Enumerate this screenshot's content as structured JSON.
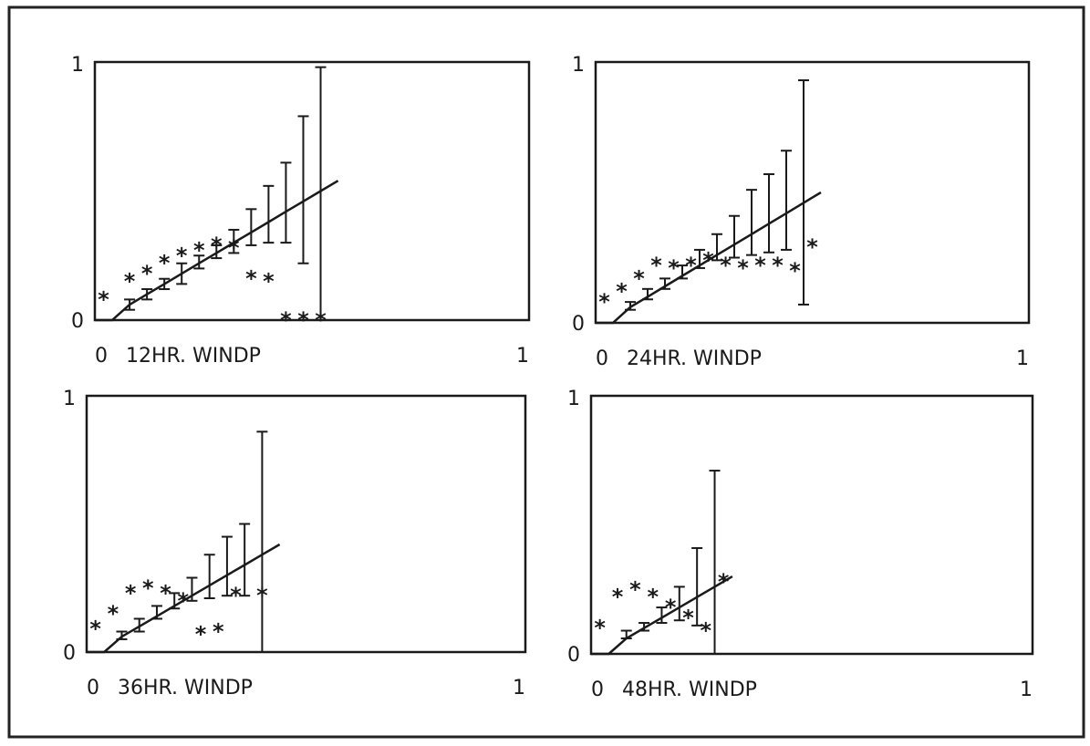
{
  "chart_data": [
    {
      "type": "line",
      "xlabel": "12HR. WINDP",
      "xlim": [
        0,
        1
      ],
      "ylim": [
        0,
        1
      ],
      "x_ticks": [
        "0",
        "1"
      ],
      "y_ticks": [
        "0",
        "1"
      ],
      "line": {
        "x": [
          0,
          0.04,
          0.08,
          0.12,
          0.16,
          0.2,
          0.24,
          0.28,
          0.32,
          0.36,
          0.4,
          0.44,
          0.48,
          0.52,
          0.56
        ],
        "y": [
          0,
          0,
          0.06,
          0.1,
          0.14,
          0.18,
          0.22,
          0.26,
          0.3,
          0.34,
          0.38,
          0.42,
          0.46,
          0.5,
          0.54
        ]
      },
      "error_bars": [
        {
          "x": 0.08,
          "low": 0.04,
          "high": 0.08
        },
        {
          "x": 0.12,
          "low": 0.08,
          "high": 0.12
        },
        {
          "x": 0.16,
          "low": 0.12,
          "high": 0.16
        },
        {
          "x": 0.2,
          "low": 0.14,
          "high": 0.22
        },
        {
          "x": 0.24,
          "low": 0.2,
          "high": 0.25
        },
        {
          "x": 0.28,
          "low": 0.24,
          "high": 0.29
        },
        {
          "x": 0.32,
          "low": 0.26,
          "high": 0.35
        },
        {
          "x": 0.36,
          "low": 0.29,
          "high": 0.43
        },
        {
          "x": 0.4,
          "low": 0.3,
          "high": 0.52
        },
        {
          "x": 0.44,
          "low": 0.3,
          "high": 0.61
        },
        {
          "x": 0.48,
          "low": 0.22,
          "high": 0.79
        },
        {
          "x": 0.52,
          "low": 0.0,
          "high": 0.98
        }
      ],
      "points": {
        "x": [
          0.02,
          0.08,
          0.12,
          0.16,
          0.2,
          0.24,
          0.28,
          0.32,
          0.36,
          0.4,
          0.44,
          0.48,
          0.52
        ],
        "y": [
          0.08,
          0.15,
          0.18,
          0.22,
          0.25,
          0.27,
          0.29,
          0.28,
          0.16,
          0.15,
          0.0,
          0.0,
          0.0
        ]
      }
    },
    {
      "type": "line",
      "xlabel": "24HR. WINDP",
      "xlim": [
        0,
        1
      ],
      "ylim": [
        0,
        1
      ],
      "x_ticks": [
        "0",
        "1"
      ],
      "y_ticks": [
        "0",
        "1"
      ],
      "line": {
        "x": [
          0,
          0.04,
          0.08,
          0.12,
          0.16,
          0.2,
          0.24,
          0.28,
          0.32,
          0.36,
          0.4,
          0.44,
          0.48,
          0.52
        ],
        "y": [
          0,
          0,
          0.06,
          0.1,
          0.14,
          0.18,
          0.22,
          0.26,
          0.3,
          0.34,
          0.38,
          0.42,
          0.46,
          0.5
        ]
      },
      "error_bars": [
        {
          "x": 0.08,
          "low": 0.05,
          "high": 0.08
        },
        {
          "x": 0.12,
          "low": 0.09,
          "high": 0.13
        },
        {
          "x": 0.16,
          "low": 0.13,
          "high": 0.17
        },
        {
          "x": 0.2,
          "low": 0.17,
          "high": 0.22
        },
        {
          "x": 0.24,
          "low": 0.21,
          "high": 0.28
        },
        {
          "x": 0.28,
          "low": 0.24,
          "high": 0.34
        },
        {
          "x": 0.32,
          "low": 0.25,
          "high": 0.41
        },
        {
          "x": 0.36,
          "low": 0.26,
          "high": 0.51
        },
        {
          "x": 0.4,
          "low": 0.27,
          "high": 0.57
        },
        {
          "x": 0.44,
          "low": 0.28,
          "high": 0.66
        },
        {
          "x": 0.48,
          "low": 0.07,
          "high": 0.93
        }
      ],
      "points": {
        "x": [
          0.02,
          0.06,
          0.1,
          0.14,
          0.18,
          0.22,
          0.26,
          0.3,
          0.34,
          0.38,
          0.42,
          0.46,
          0.5
        ],
        "y": [
          0.08,
          0.12,
          0.17,
          0.22,
          0.21,
          0.22,
          0.24,
          0.22,
          0.21,
          0.22,
          0.22,
          0.2,
          0.29
        ]
      }
    },
    {
      "type": "line",
      "xlabel": "36HR. WINDP",
      "xlim": [
        0,
        1
      ],
      "ylim": [
        0,
        1
      ],
      "x_ticks": [
        "0",
        "1"
      ],
      "y_ticks": [
        "0",
        "1"
      ],
      "line": {
        "x": [
          0,
          0.04,
          0.08,
          0.12,
          0.16,
          0.2,
          0.24,
          0.28,
          0.32,
          0.36,
          0.4,
          0.44
        ],
        "y": [
          0,
          0,
          0.06,
          0.1,
          0.14,
          0.18,
          0.22,
          0.26,
          0.3,
          0.34,
          0.38,
          0.42
        ]
      },
      "error_bars": [
        {
          "x": 0.08,
          "low": 0.05,
          "high": 0.08
        },
        {
          "x": 0.12,
          "low": 0.08,
          "high": 0.13
        },
        {
          "x": 0.16,
          "low": 0.13,
          "high": 0.18
        },
        {
          "x": 0.2,
          "low": 0.17,
          "high": 0.23
        },
        {
          "x": 0.24,
          "low": 0.2,
          "high": 0.29
        },
        {
          "x": 0.28,
          "low": 0.21,
          "high": 0.38
        },
        {
          "x": 0.32,
          "low": 0.22,
          "high": 0.45
        },
        {
          "x": 0.36,
          "low": 0.22,
          "high": 0.5
        },
        {
          "x": 0.4,
          "low": 0.0,
          "high": 0.86
        }
      ],
      "points": {
        "x": [
          0.02,
          0.06,
          0.1,
          0.14,
          0.18,
          0.22,
          0.26,
          0.3,
          0.34,
          0.4
        ],
        "y": [
          0.09,
          0.15,
          0.23,
          0.25,
          0.23,
          0.2,
          0.07,
          0.08,
          0.22,
          0.22
        ]
      }
    },
    {
      "type": "line",
      "xlabel": "48HR. WINDP",
      "xlim": [
        0,
        1
      ],
      "ylim": [
        0,
        1
      ],
      "x_ticks": [
        "0",
        "1"
      ],
      "y_ticks": [
        "0",
        "1"
      ],
      "line": {
        "x": [
          0,
          0.04,
          0.08,
          0.12,
          0.16,
          0.2,
          0.24,
          0.28,
          0.32
        ],
        "y": [
          0,
          0,
          0.06,
          0.1,
          0.14,
          0.18,
          0.22,
          0.26,
          0.3
        ]
      },
      "error_bars": [
        {
          "x": 0.08,
          "low": 0.06,
          "high": 0.09
        },
        {
          "x": 0.12,
          "low": 0.09,
          "high": 0.12
        },
        {
          "x": 0.16,
          "low": 0.12,
          "high": 0.18
        },
        {
          "x": 0.2,
          "low": 0.13,
          "high": 0.26
        },
        {
          "x": 0.24,
          "low": 0.11,
          "high": 0.41
        },
        {
          "x": 0.28,
          "low": 0.0,
          "high": 0.71
        }
      ],
      "points": {
        "x": [
          0.02,
          0.06,
          0.1,
          0.14,
          0.18,
          0.22,
          0.26,
          0.3
        ],
        "y": [
          0.1,
          0.22,
          0.25,
          0.22,
          0.18,
          0.14,
          0.09,
          0.28
        ]
      }
    }
  ]
}
